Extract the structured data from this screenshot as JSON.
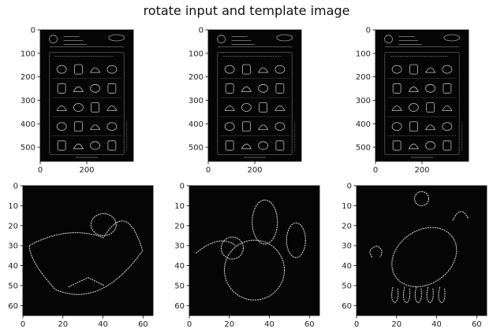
{
  "figure": {
    "title": "rotate input and template image"
  },
  "chart_data": [
    {
      "type": "heatmap",
      "panel": "top-left",
      "xlim": [
        0,
        400
      ],
      "ylim": [
        560,
        0
      ],
      "xticks": [
        0,
        200
      ],
      "yticks": [
        0,
        100,
        200,
        300,
        400,
        500
      ],
      "colormap": "gray"
    },
    {
      "type": "heatmap",
      "panel": "top-middle",
      "xlim": [
        0,
        400
      ],
      "ylim": [
        560,
        0
      ],
      "xticks": [
        0,
        200
      ],
      "yticks": [
        0,
        100,
        200,
        300,
        400,
        500
      ],
      "colormap": "gray"
    },
    {
      "type": "heatmap",
      "panel": "top-right",
      "xlim": [
        0,
        400
      ],
      "ylim": [
        560,
        0
      ],
      "xticks": [
        0,
        200
      ],
      "yticks": [
        0,
        100,
        200,
        300,
        400,
        500
      ],
      "colormap": "gray"
    },
    {
      "type": "heatmap",
      "panel": "bottom-left",
      "xlim": [
        0,
        65
      ],
      "ylim": [
        65,
        0
      ],
      "xticks": [
        0,
        20,
        40,
        60
      ],
      "yticks": [
        0,
        10,
        20,
        30,
        40,
        50,
        60
      ],
      "colormap": "gray"
    },
    {
      "type": "heatmap",
      "panel": "bottom-middle",
      "xlim": [
        0,
        65
      ],
      "ylim": [
        65,
        0
      ],
      "xticks": [
        0,
        20,
        40,
        60
      ],
      "yticks": [
        0,
        10,
        20,
        30,
        40,
        50,
        60
      ],
      "colormap": "gray"
    },
    {
      "type": "heatmap",
      "panel": "bottom-right",
      "xlim": [
        0,
        65
      ],
      "ylim": [
        65,
        0
      ],
      "xticks": [
        0,
        20,
        40,
        60
      ],
      "yticks": [
        0,
        10,
        20,
        30,
        40,
        50,
        60
      ],
      "colormap": "gray"
    }
  ]
}
